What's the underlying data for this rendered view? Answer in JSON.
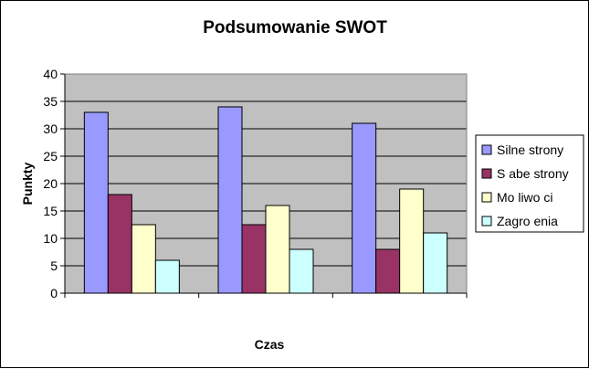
{
  "chart_data": {
    "type": "bar",
    "title": "Podsumowanie SWOT",
    "xlabel": "Czas",
    "ylabel": "Punkty",
    "ylim": [
      0,
      40
    ],
    "yticks": [
      0,
      5,
      10,
      15,
      20,
      25,
      30,
      35,
      40
    ],
    "categories": [
      "",
      "",
      ""
    ],
    "grid": true,
    "legend_position": "right",
    "series": [
      {
        "name": "Silne strony",
        "color": "#9999ff",
        "values": [
          33,
          34,
          31
        ]
      },
      {
        "name": "S abe strony",
        "color": "#993366",
        "values": [
          18,
          12.5,
          8
        ]
      },
      {
        "name": "Mo liwo ci",
        "color": "#ffffcc",
        "values": [
          12.5,
          16,
          19
        ]
      },
      {
        "name": "Zagro enia",
        "color": "#ccffff",
        "values": [
          6,
          8,
          11
        ]
      }
    ],
    "plot_background": "#c0c0c0"
  }
}
